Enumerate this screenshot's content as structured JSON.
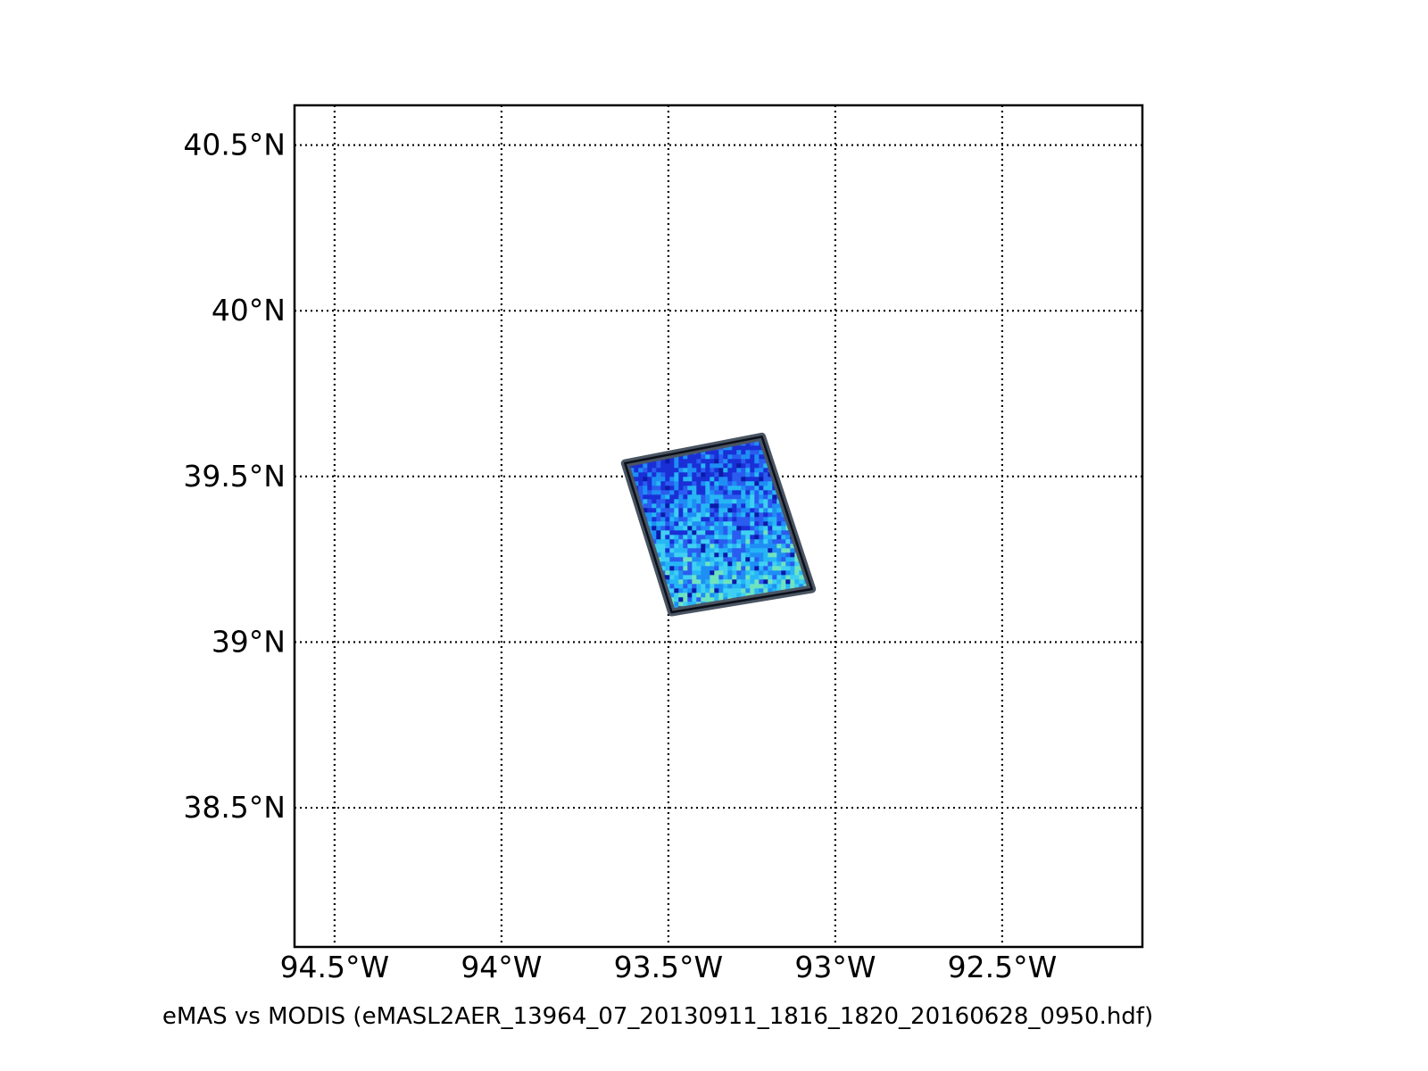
{
  "chart_data": {
    "type": "map",
    "caption": "eMAS vs MODIS (eMASL2AER_13964_07_20130911_1816_1820_20160628_0950.hdf)",
    "lon_range": [
      -94.62,
      -92.08
    ],
    "lat_range": [
      38.08,
      40.62
    ],
    "lon_ticks": [
      {
        "value": -94.5,
        "label": "94.5°W"
      },
      {
        "value": -94.0,
        "label": "94°W"
      },
      {
        "value": -93.5,
        "label": "93.5°W"
      },
      {
        "value": -93.0,
        "label": "93°W"
      },
      {
        "value": -92.5,
        "label": "92.5°W"
      }
    ],
    "lat_ticks": [
      {
        "value": 40.5,
        "label": "40.5°N"
      },
      {
        "value": 40.0,
        "label": "40°N"
      },
      {
        "value": 39.5,
        "label": "39.5°N"
      },
      {
        "value": 39.0,
        "label": "39°N"
      },
      {
        "value": 38.5,
        "label": "38.5°N"
      }
    ],
    "grid": true,
    "swath": {
      "corners": [
        {
          "lon": -93.63,
          "lat": 39.54
        },
        {
          "lon": -93.22,
          "lat": 39.62
        },
        {
          "lon": -93.07,
          "lat": 39.16
        },
        {
          "lon": -93.49,
          "lat": 39.09
        }
      ],
      "outline_color": "#4a5563",
      "colors": [
        "#1a2fd6",
        "#2a5cf0",
        "#1e8ef5",
        "#27b6f5",
        "#3fd0f2",
        "#6fe3c0",
        "#0c1aa8"
      ]
    }
  }
}
